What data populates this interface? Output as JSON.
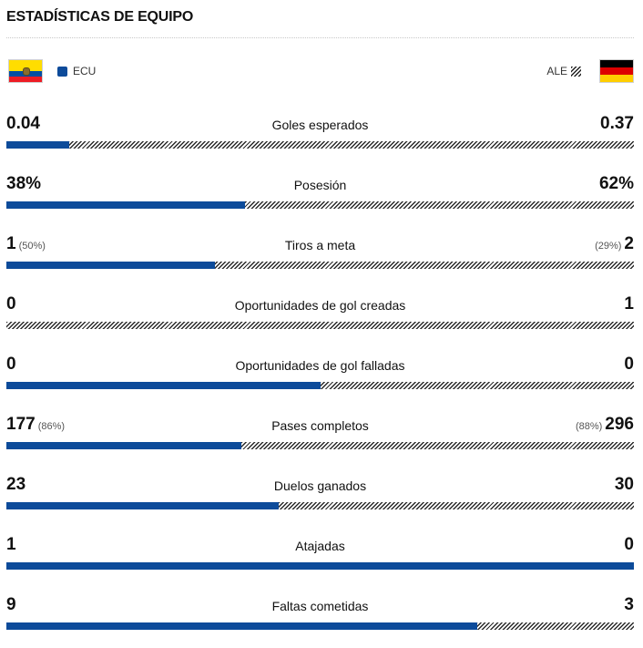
{
  "header": {
    "title": "ESTADÍSTICAS DE EQUIPO"
  },
  "teams": {
    "home": {
      "code": "ECU",
      "flag": "ecuador-flag",
      "color": "#0d4b9a"
    },
    "away": {
      "code": "ALE",
      "flag": "germany-flag",
      "pattern": "hatched"
    }
  },
  "stats": [
    {
      "label": "Goles esperados",
      "home": "0.04",
      "home_pct": "",
      "away": "0.37",
      "away_pct": "",
      "home_share": 0.1
    },
    {
      "label": "Posesión",
      "home": "38%",
      "home_pct": "",
      "away": "62%",
      "away_pct": "",
      "home_share": 0.38
    },
    {
      "label": "Tiros a meta",
      "home": "1",
      "home_pct": "(50%)",
      "away": "2",
      "away_pct": "(29%)",
      "home_share": 0.333
    },
    {
      "label": "Oportunidades de gol creadas",
      "home": "0",
      "home_pct": "",
      "away": "1",
      "away_pct": "",
      "home_share": 0
    },
    {
      "label": "Oportunidades de gol falladas",
      "home": "0",
      "home_pct": "",
      "away": "0",
      "away_pct": "",
      "home_share": 0.5
    },
    {
      "label": "Pases completos",
      "home": "177",
      "home_pct": "(86%)",
      "away": "296",
      "away_pct": "(88%)",
      "home_share": 0.374
    },
    {
      "label": "Duelos ganados",
      "home": "23",
      "home_pct": "",
      "away": "30",
      "away_pct": "",
      "home_share": 0.434
    },
    {
      "label": "Atajadas",
      "home": "1",
      "home_pct": "",
      "away": "0",
      "away_pct": "",
      "home_share": 1
    },
    {
      "label": "Faltas cometidas",
      "home": "9",
      "home_pct": "",
      "away": "3",
      "away_pct": "",
      "home_share": 0.75
    }
  ]
}
